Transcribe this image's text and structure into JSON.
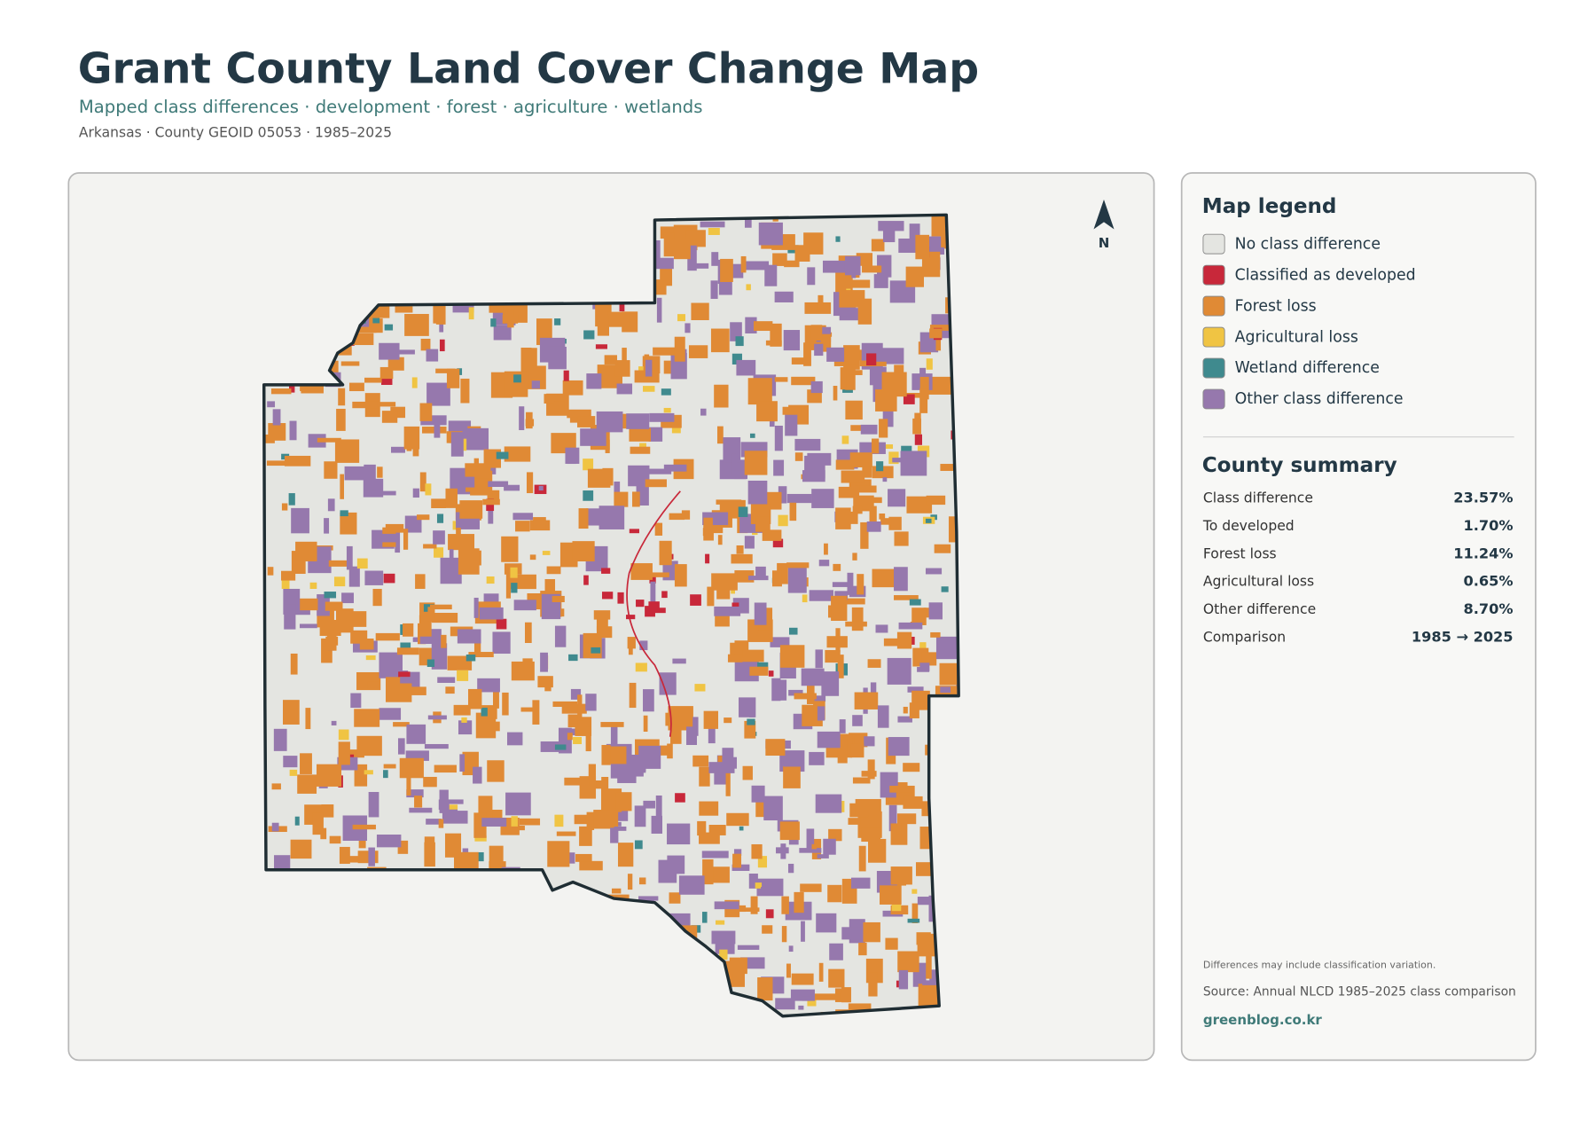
{
  "header": {
    "title": "Grant County Land Cover Change Map",
    "subtitle": "Mapped class differences · development · forest · agriculture · wetlands",
    "meta": "Arkansas · County GEOID 05053 · 1985–2025"
  },
  "map": {
    "north_label": "N"
  },
  "legend": {
    "title": "Map legend",
    "items": [
      {
        "label": "No class difference",
        "color": "#e4e5e1"
      },
      {
        "label": "Classified as developed",
        "color": "#c8283a"
      },
      {
        "label": "Forest loss",
        "color": "#e08a35"
      },
      {
        "label": "Agricultural loss",
        "color": "#f0c443"
      },
      {
        "label": "Wetland difference",
        "color": "#3f8a8e"
      },
      {
        "label": "Other class difference",
        "color": "#9678ad"
      }
    ]
  },
  "summary": {
    "title": "County summary",
    "rows": [
      {
        "label": "Class difference",
        "value": "23.57%"
      },
      {
        "label": "To developed",
        "value": "1.70%"
      },
      {
        "label": "Forest loss",
        "value": "11.24%"
      },
      {
        "label": "Agricultural loss",
        "value": "0.65%"
      },
      {
        "label": "Other difference",
        "value": "8.70%"
      },
      {
        "label": "Comparison",
        "value": "1985 → 2025"
      }
    ]
  },
  "footer": {
    "note": "Differences may include classification variation.",
    "source": "Source: Annual NLCD 1985–2025 class comparison",
    "site": "greenblog.co.kr"
  }
}
